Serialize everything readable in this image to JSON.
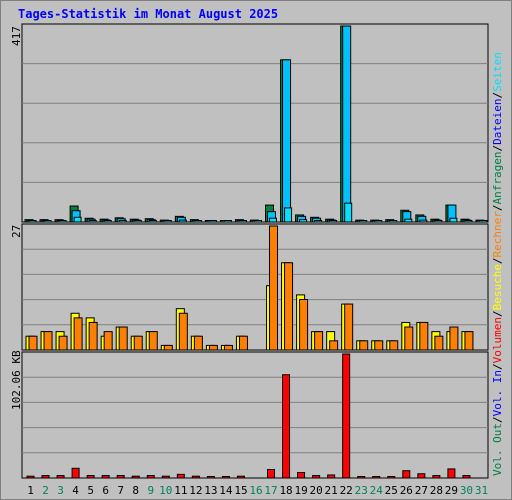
{
  "title": "Tages-Statistik im Monat August 2025",
  "colors": {
    "background": "#C0C0C0",
    "title": "#0000FF",
    "hits": "#008040",
    "files": "#00C0FF",
    "pages": "#00E0FF",
    "visits": "#FFFF00",
    "sites": "#FF8000",
    "kbytes": "#FF0000",
    "day_normal": "#000000",
    "day_weekend": "#00805C"
  },
  "legend": {
    "top": [
      {
        "label": "Anfragen",
        "color": "#008040"
      },
      {
        "label": "Dateien",
        "color": "#0000FF"
      },
      {
        "label": "Seiten",
        "color": "#00E0FF"
      }
    ],
    "middle": [
      {
        "label": "Besuche",
        "color": "#FFFF00"
      },
      {
        "label": "Rechner",
        "color": "#FF8000"
      }
    ],
    "bottom": [
      {
        "label": "Vol. Out",
        "color": "#008040"
      },
      {
        "label": "Vol. In",
        "color": "#0000FF"
      },
      {
        "label": "Volumen",
        "color": "#FF0000"
      }
    ]
  },
  "chart_data": [
    {
      "type": "bar",
      "panel": "top",
      "ylabel_max": "417",
      "ylim": [
        0,
        417
      ],
      "categories": [
        "1",
        "2",
        "3",
        "4",
        "5",
        "6",
        "7",
        "8",
        "9",
        "10",
        "11",
        "12",
        "13",
        "14",
        "15",
        "16",
        "17",
        "18",
        "19",
        "20",
        "21",
        "22",
        "23",
        "24",
        "25",
        "26",
        "27",
        "28",
        "29",
        "30",
        "31"
      ],
      "series": [
        {
          "name": "Anfragen",
          "values": [
            5,
            5,
            5,
            34,
            8,
            6,
            9,
            6,
            7,
            4,
            12,
            5,
            3,
            3,
            5,
            4,
            36,
            345,
            15,
            10,
            6,
            417,
            4,
            4,
            5,
            25,
            15,
            6,
            36,
            6,
            4
          ]
        },
        {
          "name": "Dateien",
          "values": [
            3,
            3,
            3,
            24,
            6,
            4,
            7,
            4,
            5,
            3,
            10,
            3,
            2,
            2,
            3,
            3,
            22,
            345,
            12,
            8,
            4,
            417,
            3,
            3,
            3,
            22,
            12,
            4,
            36,
            4,
            3
          ]
        },
        {
          "name": "Seiten",
          "values": [
            2,
            2,
            2,
            10,
            3,
            2,
            3,
            2,
            2,
            2,
            4,
            2,
            1,
            1,
            2,
            2,
            8,
            30,
            5,
            3,
            2,
            40,
            2,
            2,
            2,
            6,
            4,
            2,
            8,
            2,
            2
          ]
        }
      ]
    },
    {
      "type": "bar",
      "panel": "middle",
      "ylabel_max": "27",
      "ylim": [
        0,
        27
      ],
      "categories": [
        "1",
        "2",
        "3",
        "4",
        "5",
        "6",
        "7",
        "8",
        "9",
        "10",
        "11",
        "12",
        "13",
        "14",
        "15",
        "16",
        "17",
        "18",
        "19",
        "20",
        "21",
        "22",
        "23",
        "24",
        "25",
        "26",
        "27",
        "28",
        "29",
        "30",
        "31"
      ],
      "series": [
        {
          "name": "Besuche",
          "values": [
            3,
            4,
            4,
            8,
            7,
            3,
            5,
            3,
            4,
            1,
            9,
            3,
            1,
            1,
            3,
            0,
            14,
            19,
            12,
            4,
            4,
            10,
            2,
            2,
            2,
            6,
            6,
            4,
            4,
            4,
            0
          ]
        },
        {
          "name": "Rechner",
          "values": [
            3,
            4,
            3,
            7,
            6,
            4,
            5,
            3,
            4,
            1,
            8,
            3,
            1,
            1,
            3,
            0,
            27,
            19,
            11,
            4,
            2,
            10,
            2,
            2,
            2,
            5,
            6,
            3,
            5,
            4,
            0
          ]
        }
      ]
    },
    {
      "type": "bar",
      "panel": "bottom",
      "ylabel_max": "102.06 KB",
      "ylim": [
        0,
        102.06
      ],
      "categories": [
        "1",
        "2",
        "3",
        "4",
        "5",
        "6",
        "7",
        "8",
        "9",
        "10",
        "11",
        "12",
        "13",
        "14",
        "15",
        "16",
        "17",
        "18",
        "19",
        "20",
        "21",
        "22",
        "23",
        "24",
        "25",
        "26",
        "27",
        "28",
        "29",
        "30",
        "31"
      ],
      "series": [
        {
          "name": "Volumen",
          "values": [
            1.5,
            2,
            2,
            8,
            2,
            2,
            2,
            1.5,
            2,
            1.5,
            3,
            1.5,
            1,
            1,
            1.5,
            0,
            7,
            85,
            4.5,
            2,
            2.5,
            102.06,
            1,
            1,
            1,
            6,
            3.5,
            2,
            7.5,
            2,
            0
          ]
        }
      ]
    }
  ],
  "weekend_days": [
    "2",
    "3",
    "9",
    "10",
    "16",
    "17",
    "23",
    "24",
    "30",
    "31"
  ]
}
